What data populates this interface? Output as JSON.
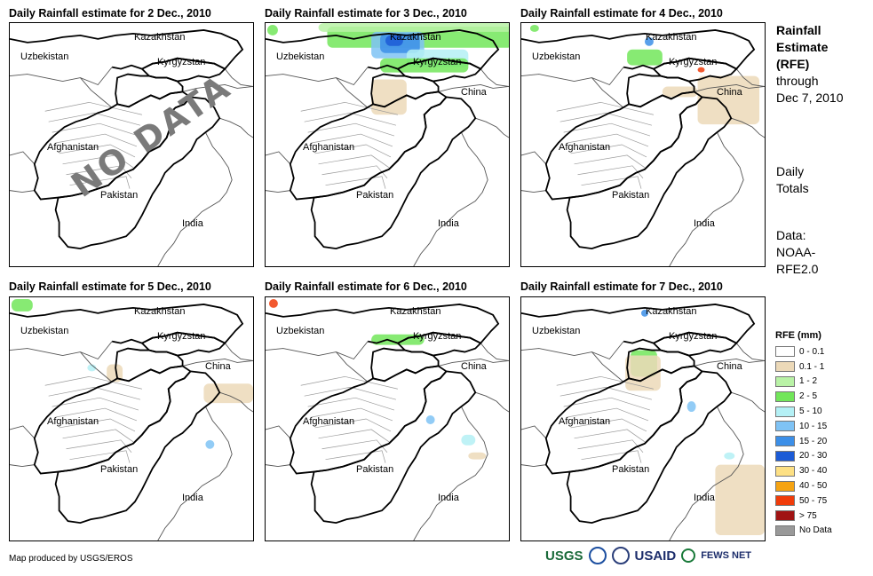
{
  "panels": [
    {
      "title": "Daily Rainfall estimate for 2 Dec., 2010",
      "overlay": "NO DATA"
    },
    {
      "title": "Daily Rainfall estimate for 3 Dec., 2010",
      "overlay": ""
    },
    {
      "title": "Daily Rainfall estimate for 4 Dec., 2010",
      "overlay": ""
    },
    {
      "title": "Daily Rainfall estimate for 5 Dec., 2010",
      "overlay": ""
    },
    {
      "title": "Daily Rainfall estimate for 6 Dec., 2010",
      "overlay": ""
    },
    {
      "title": "Daily Rainfall estimate for 7 Dec., 2010",
      "overlay": ""
    }
  ],
  "map_labels": {
    "kazakhstan": "Kazakhstan",
    "uzbekistan": "Uzbekistan",
    "kyrgyzstan": "Kyrgyzstan",
    "china": "China",
    "afghanistan": "Afghanistan",
    "pakistan": "Pakistan",
    "india": "India"
  },
  "side": {
    "title_line1": "Rainfall",
    "title_line2": "Estimate",
    "title_line3": "(RFE)",
    "through": "through",
    "date": "Dec 7, 2010",
    "daily1": "Daily",
    "daily2": "Totals",
    "data1": "Data:",
    "data2": "NOAA-",
    "data3": "RFE2.0"
  },
  "legend": {
    "title": "RFE (mm)",
    "items": [
      {
        "label": "0 - 0.1",
        "color": "#ffffff"
      },
      {
        "label": "0.1 - 1",
        "color": "#ecd9b8"
      },
      {
        "label": "1 - 2",
        "color": "#b9f2a6"
      },
      {
        "label": "2 - 5",
        "color": "#72e65a"
      },
      {
        "label": "5 - 10",
        "color": "#b4f0f5"
      },
      {
        "label": "10 - 15",
        "color": "#7fc3f5"
      },
      {
        "label": "15 - 20",
        "color": "#3c8fe8"
      },
      {
        "label": "20 - 30",
        "color": "#1c5bd6"
      },
      {
        "label": "30 - 40",
        "color": "#fde084"
      },
      {
        "label": "40 - 50",
        "color": "#f5a312"
      },
      {
        "label": "50 - 75",
        "color": "#f03c0a"
      },
      {
        "label": "> 75",
        "color": "#a01414"
      },
      {
        "label": "No Data",
        "color": "#999999"
      }
    ]
  },
  "footer": {
    "credit": "Map produced by USGS/EROS",
    "logo_usgs": "USGS",
    "logo_usaid": "USAID",
    "logo_fews": "FEWS NET"
  }
}
